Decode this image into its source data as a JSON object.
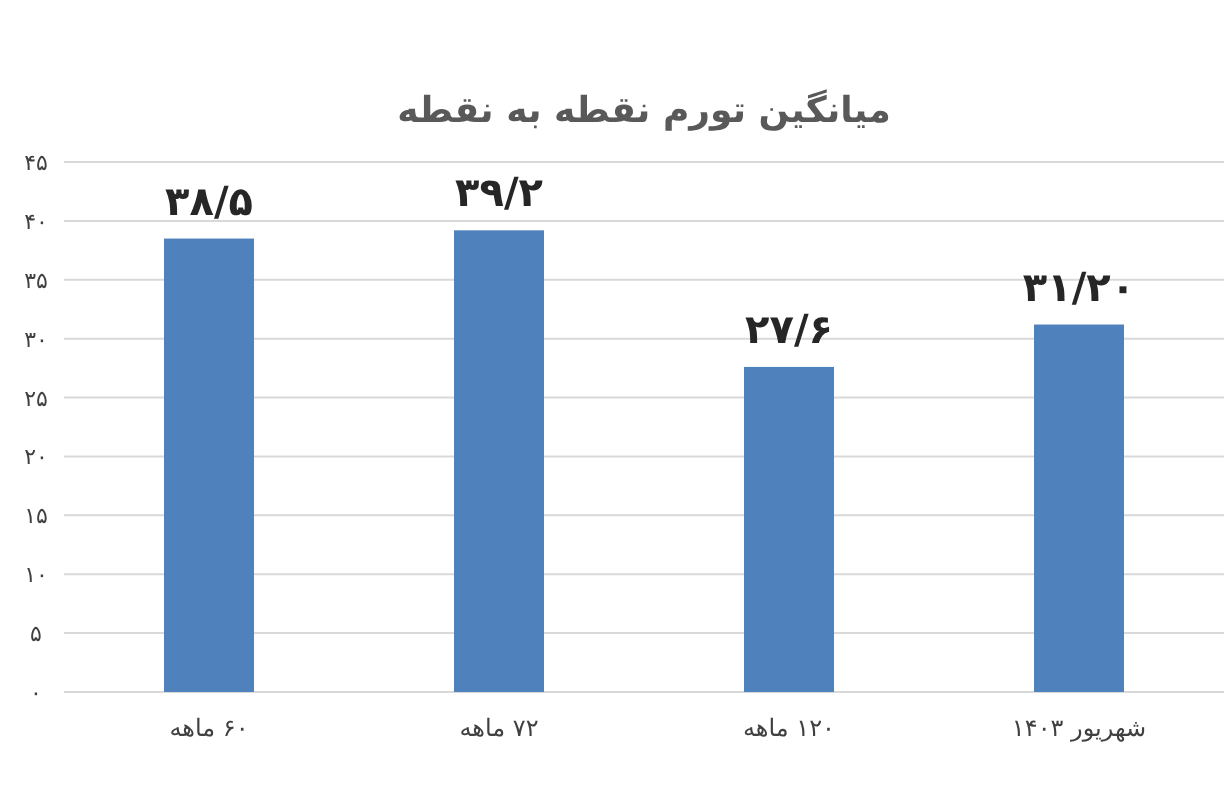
{
  "chart_data": {
    "type": "bar",
    "title": "میانگین تورم نقطه به نقطه",
    "categories": [
      "۶۰ ماهه",
      "۷۲ ماهه",
      "۱۲۰ ماهه",
      "شهریور ۱۴۰۳"
    ],
    "values": [
      38.5,
      39.2,
      27.6,
      31.2
    ],
    "value_labels": [
      "۳۸/۵",
      "۳۹/۲",
      "۲۷/۶",
      "۳۱/۲۰"
    ],
    "color": "#4f81bd",
    "ylim": [
      0,
      45
    ],
    "yticks": [
      {
        "value": 0,
        "label": "۰"
      },
      {
        "value": 5,
        "label": "۵"
      },
      {
        "value": 10,
        "label": "۱۰"
      },
      {
        "value": 15,
        "label": "۱۵"
      },
      {
        "value": 20,
        "label": "۲۰"
      },
      {
        "value": 25,
        "label": "۲۵"
      },
      {
        "value": 30,
        "label": "۳۰"
      },
      {
        "value": 35,
        "label": "۳۵"
      },
      {
        "value": 40,
        "label": "۴۰"
      },
      {
        "value": 45,
        "label": "۴۵"
      }
    ],
    "grid": "y"
  }
}
